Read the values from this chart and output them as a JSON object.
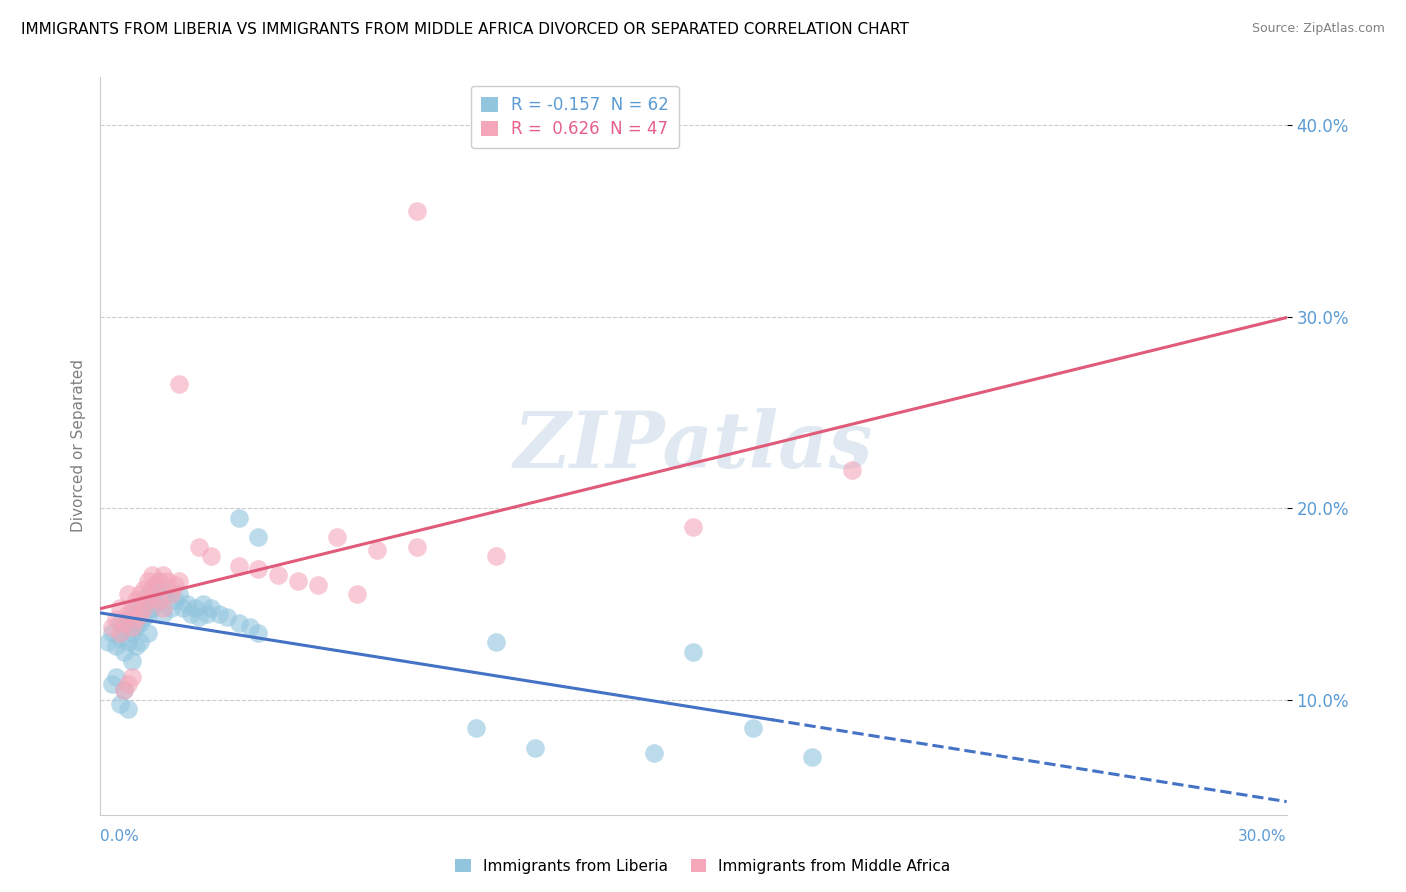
{
  "title": "IMMIGRANTS FROM LIBERIA VS IMMIGRANTS FROM MIDDLE AFRICA DIVORCED OR SEPARATED CORRELATION CHART",
  "source": "Source: ZipAtlas.com",
  "ylabel": "Divorced or Separated",
  "legend_bottom": [
    "Immigrants from Liberia",
    "Immigrants from Middle Africa"
  ],
  "legend_top": [
    {
      "label": "R = -0.157  N = 62",
      "color": "#5b9bd5"
    },
    {
      "label": "R =  0.626  N = 47",
      "color": "#e8608a"
    }
  ],
  "xlim": [
    0.0,
    0.3
  ],
  "ylim": [
    0.04,
    0.425
  ],
  "yticks": [
    0.1,
    0.2,
    0.3,
    0.4
  ],
  "ytick_labels": [
    "10.0%",
    "20.0%",
    "30.0%",
    "40.0%"
  ],
  "xtick_labels": [
    "0.0%",
    "30.0%"
  ],
  "color_liberia": "#92c5de",
  "color_middle_africa": "#f4a7b9",
  "regression_liberia_color": "#4472c4",
  "regression_middle_africa_color": "#e05a7a",
  "watermark": "ZIPatlas",
  "liberia_points": [
    [
      0.002,
      0.13
    ],
    [
      0.003,
      0.135
    ],
    [
      0.004,
      0.128
    ],
    [
      0.005,
      0.14
    ],
    [
      0.005,
      0.132
    ],
    [
      0.006,
      0.138
    ],
    [
      0.006,
      0.125
    ],
    [
      0.007,
      0.142
    ],
    [
      0.007,
      0.13
    ],
    [
      0.008,
      0.145
    ],
    [
      0.008,
      0.135
    ],
    [
      0.008,
      0.12
    ],
    [
      0.009,
      0.148
    ],
    [
      0.009,
      0.138
    ],
    [
      0.009,
      0.128
    ],
    [
      0.01,
      0.15
    ],
    [
      0.01,
      0.14
    ],
    [
      0.01,
      0.13
    ],
    [
      0.011,
      0.152
    ],
    [
      0.011,
      0.143
    ],
    [
      0.012,
      0.155
    ],
    [
      0.012,
      0.145
    ],
    [
      0.012,
      0.135
    ],
    [
      0.013,
      0.158
    ],
    [
      0.013,
      0.148
    ],
    [
      0.014,
      0.16
    ],
    [
      0.014,
      0.15
    ],
    [
      0.015,
      0.162
    ],
    [
      0.015,
      0.152
    ],
    [
      0.016,
      0.155
    ],
    [
      0.016,
      0.145
    ],
    [
      0.017,
      0.158
    ],
    [
      0.018,
      0.148
    ],
    [
      0.019,
      0.152
    ],
    [
      0.02,
      0.155
    ],
    [
      0.021,
      0.148
    ],
    [
      0.022,
      0.15
    ],
    [
      0.023,
      0.145
    ],
    [
      0.024,
      0.148
    ],
    [
      0.025,
      0.143
    ],
    [
      0.026,
      0.15
    ],
    [
      0.027,
      0.145
    ],
    [
      0.028,
      0.148
    ],
    [
      0.03,
      0.145
    ],
    [
      0.032,
      0.143
    ],
    [
      0.035,
      0.14
    ],
    [
      0.038,
      0.138
    ],
    [
      0.04,
      0.135
    ],
    [
      0.003,
      0.108
    ],
    [
      0.004,
      0.112
    ],
    [
      0.005,
      0.098
    ],
    [
      0.006,
      0.105
    ],
    [
      0.007,
      0.095
    ],
    [
      0.035,
      0.195
    ],
    [
      0.04,
      0.185
    ],
    [
      0.1,
      0.13
    ],
    [
      0.15,
      0.125
    ],
    [
      0.095,
      0.085
    ],
    [
      0.165,
      0.085
    ],
    [
      0.11,
      0.075
    ],
    [
      0.14,
      0.072
    ],
    [
      0.18,
      0.07
    ]
  ],
  "middle_africa_points": [
    [
      0.003,
      0.138
    ],
    [
      0.004,
      0.142
    ],
    [
      0.005,
      0.135
    ],
    [
      0.005,
      0.148
    ],
    [
      0.006,
      0.14
    ],
    [
      0.007,
      0.145
    ],
    [
      0.007,
      0.155
    ],
    [
      0.008,
      0.148
    ],
    [
      0.008,
      0.138
    ],
    [
      0.009,
      0.152
    ],
    [
      0.009,
      0.142
    ],
    [
      0.01,
      0.155
    ],
    [
      0.01,
      0.145
    ],
    [
      0.011,
      0.158
    ],
    [
      0.011,
      0.148
    ],
    [
      0.012,
      0.162
    ],
    [
      0.012,
      0.152
    ],
    [
      0.013,
      0.165
    ],
    [
      0.013,
      0.155
    ],
    [
      0.014,
      0.16
    ],
    [
      0.015,
      0.162
    ],
    [
      0.015,
      0.152
    ],
    [
      0.016,
      0.165
    ],
    [
      0.016,
      0.148
    ],
    [
      0.017,
      0.162
    ],
    [
      0.018,
      0.155
    ],
    [
      0.019,
      0.16
    ],
    [
      0.02,
      0.162
    ],
    [
      0.006,
      0.105
    ],
    [
      0.007,
      0.108
    ],
    [
      0.008,
      0.112
    ],
    [
      0.02,
      0.265
    ],
    [
      0.025,
      0.18
    ],
    [
      0.028,
      0.175
    ],
    [
      0.06,
      0.185
    ],
    [
      0.07,
      0.178
    ],
    [
      0.08,
      0.18
    ],
    [
      0.035,
      0.17
    ],
    [
      0.04,
      0.168
    ],
    [
      0.045,
      0.165
    ],
    [
      0.05,
      0.162
    ],
    [
      0.055,
      0.16
    ],
    [
      0.065,
      0.155
    ],
    [
      0.08,
      0.355
    ],
    [
      0.15,
      0.19
    ],
    [
      0.1,
      0.175
    ],
    [
      0.19,
      0.22
    ]
  ]
}
